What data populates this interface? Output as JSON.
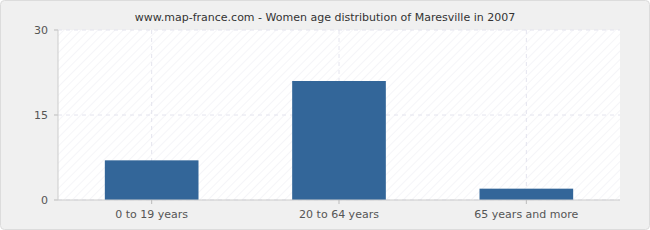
{
  "chart_data": {
    "type": "bar",
    "title": "www.map-france.com - Women age distribution of Maresville in 2007",
    "categories": [
      "0 to 19 years",
      "20 to 64 years",
      "65 years and more"
    ],
    "values": [
      7,
      21,
      2
    ],
    "color": "#336699",
    "ylim": [
      0,
      30
    ],
    "yticks": [
      0,
      15,
      30
    ],
    "grid": true
  }
}
